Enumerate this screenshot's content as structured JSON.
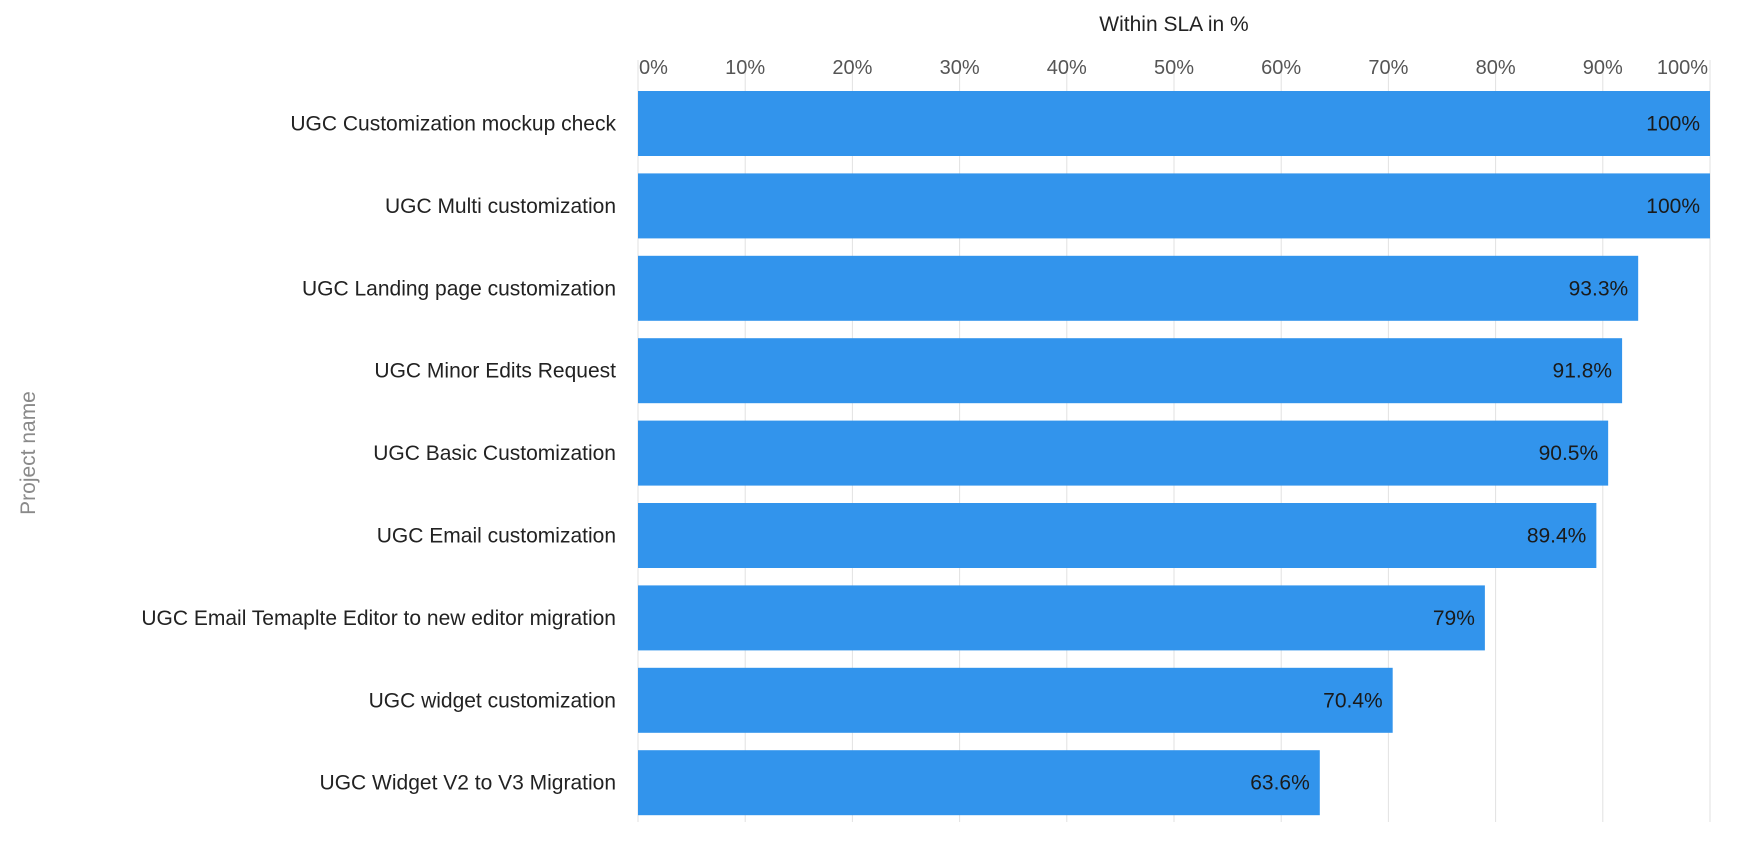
{
  "chart_data": {
    "type": "bar",
    "orientation": "horizontal",
    "xlabel": "Within SLA in %",
    "ylabel": "Project name",
    "xlim": [
      0,
      100
    ],
    "x_ticks": [
      0,
      10,
      20,
      30,
      40,
      50,
      60,
      70,
      80,
      90,
      100
    ],
    "tick_suffix": "%",
    "x_axis_position": "top",
    "grid": true,
    "legend": "none",
    "categories": [
      "UGC Customization mockup check",
      "UGC Multi customization",
      "UGC Landing page customization",
      "UGC Minor Edits Request",
      "UGC Basic Customization",
      "UGC Email customization",
      "UGC Email Temaplte Editor to new editor migration",
      "UGC widget customization",
      "UGC Widget V2 to V3 Migration"
    ],
    "values": [
      100,
      100,
      93.3,
      91.8,
      90.5,
      89.4,
      79,
      70.4,
      63.6
    ],
    "data_labels": [
      "100%",
      "100%",
      "93.3%",
      "91.8%",
      "90.5%",
      "89.4%",
      "79%",
      "70.4%",
      "63.6%"
    ],
    "bar_color": "#3294ec",
    "grid_color": "#e2e2e2"
  }
}
